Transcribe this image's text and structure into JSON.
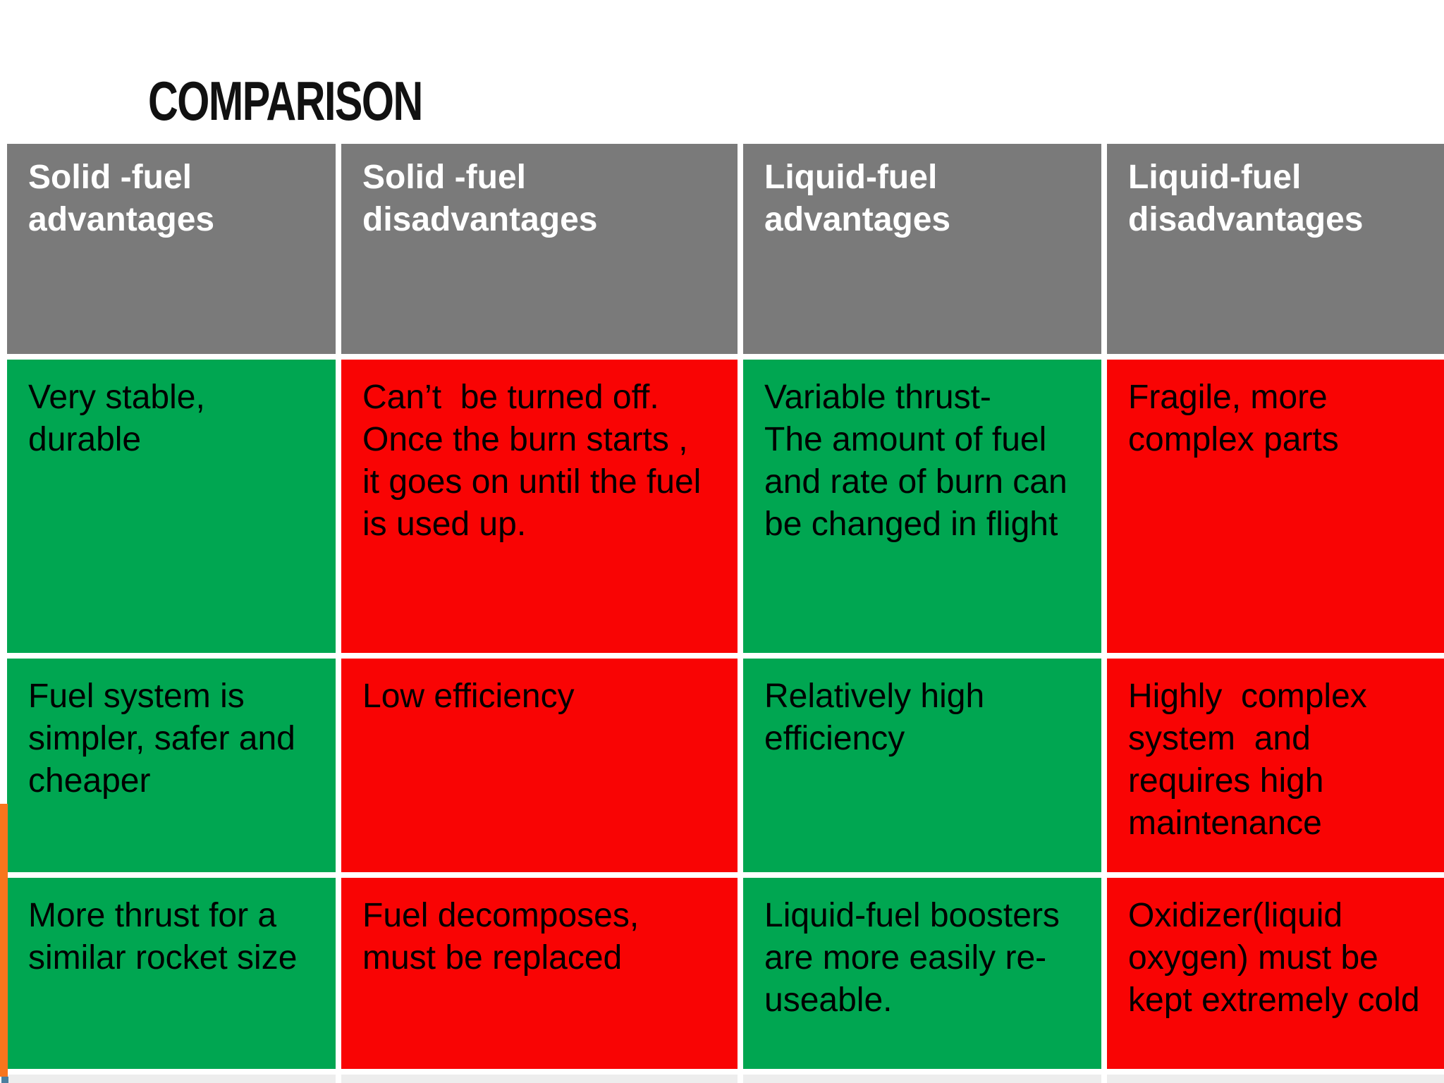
{
  "slide": {
    "title": "COMPARISON"
  },
  "table": {
    "headers": [
      "Solid -fuel\nadvantages",
      "Solid -fuel\ndisadvantages",
      "Liquid-fuel\nadvantages",
      "Liquid-fuel\ndisadvantages"
    ],
    "rows": [
      [
        "Very stable,\ndurable",
        "Can’t  be turned off.\nOnce the burn starts ,\nit goes on until the fuel\nis used up.",
        "Variable thrust-\nThe amount of fuel\nand rate of burn can\nbe changed in flight",
        "Fragile, more\ncomplex parts"
      ],
      [
        "Fuel system is\nsimpler, safer and\ncheaper",
        "Low efficiency",
        "Relatively high\nefficiency",
        "Highly  complex\nsystem  and\nrequires high\nmaintenance"
      ],
      [
        "More thrust for a\nsimilar rocket size",
        "Fuel decomposes,\nmust be replaced",
        "Liquid-fuel boosters\nare more easily re-\nuseable.",
        "Oxidizer(liquid\noxygen) must be\nkept extremely cold"
      ]
    ]
  },
  "colors": {
    "header_bg": "#7a7a7a",
    "advantage_bg": "#00a651",
    "disadvantage_bg": "#f90404",
    "header_text": "#ffffff",
    "cell_text": "#000000",
    "accent_orange": "#f8751c",
    "accent_blue": "#4b7f9f",
    "footer_strip_bg": "#ededed",
    "background": "#ffffff"
  }
}
